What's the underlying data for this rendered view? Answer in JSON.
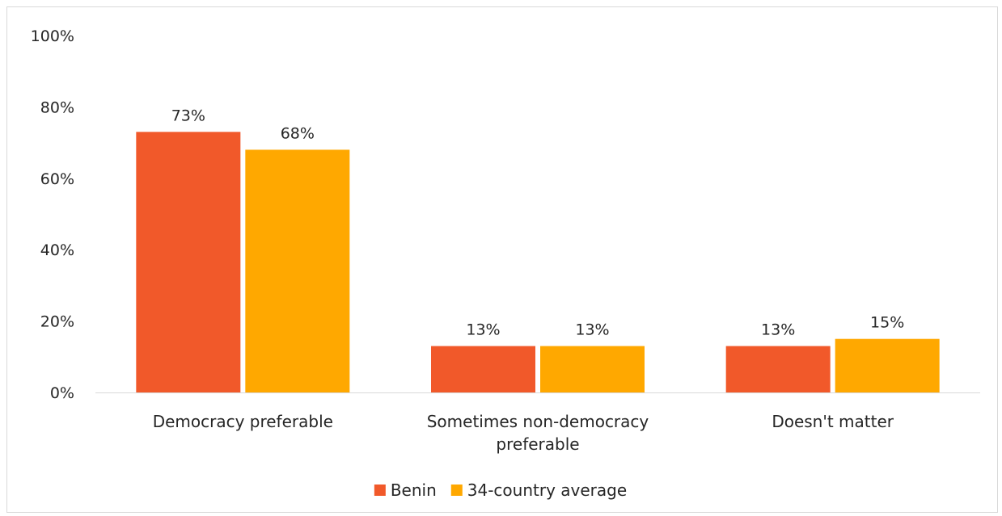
{
  "chart_data": {
    "type": "bar",
    "categories": [
      "Democracy preferable",
      "Sometimes non-democracy preferable",
      "Doesn't matter"
    ],
    "category_lines": [
      [
        "Democracy preferable"
      ],
      [
        "Sometimes non-democracy",
        "preferable"
      ],
      [
        "Doesn't matter"
      ]
    ],
    "series": [
      {
        "name": "Benin",
        "values": [
          73,
          13,
          13
        ],
        "labels": [
          "73%",
          "13%",
          "13%"
        ],
        "color": "#f1592a"
      },
      {
        "name": "34-country average",
        "values": [
          68,
          13,
          15
        ],
        "labels": [
          "68%",
          "13%",
          "15%"
        ],
        "color": "#ffa800"
      }
    ],
    "y_ticks": [
      "0%",
      "20%",
      "40%",
      "60%",
      "80%",
      "100%"
    ],
    "ylim": [
      0,
      100
    ],
    "grid": false,
    "legend": "bottom-center",
    "axis_color": "#d9d9d9"
  }
}
